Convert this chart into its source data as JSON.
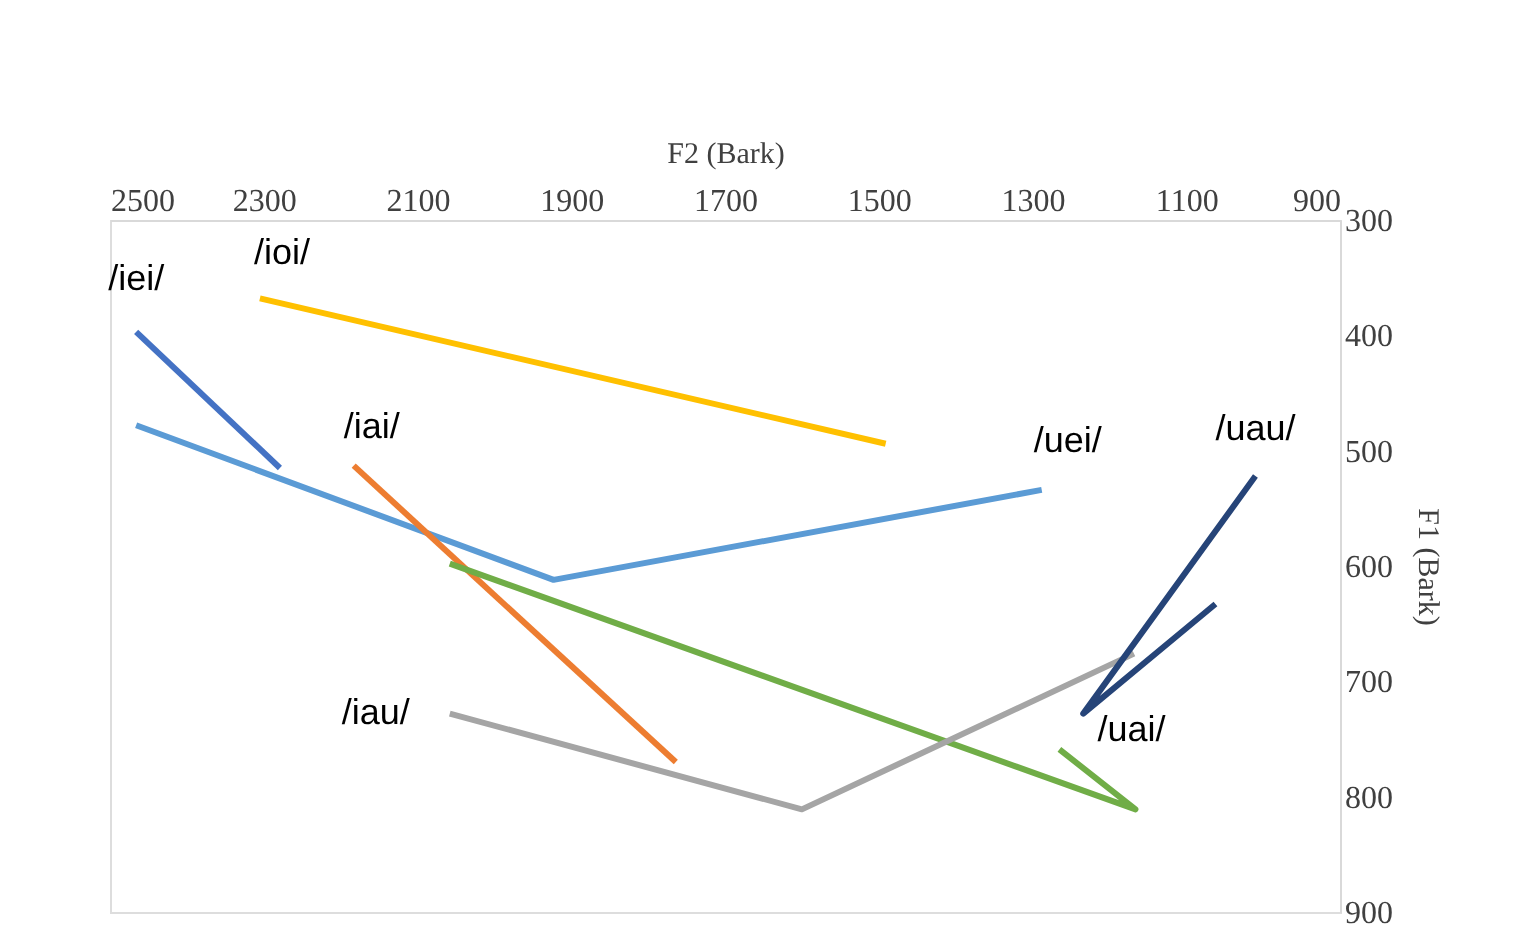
{
  "chart_data": {
    "type": "line",
    "xlabel": "F2 (Bark)",
    "ylabel": "F1 (Bark)",
    "xlim": [
      2500,
      900
    ],
    "xticks": [
      2500,
      2300,
      2100,
      1900,
      1700,
      1500,
      1300,
      1100,
      900
    ],
    "ylim": [
      900,
      300
    ],
    "yticks": [
      300,
      400,
      500,
      600,
      700,
      800,
      900
    ],
    "grid": false,
    "legend": false,
    "marker": "none",
    "line_style": "solid",
    "series": [
      {
        "name": "/iei/",
        "color": "#4472c4",
        "x": [
          2466,
          2279
        ],
        "values": [
          397,
          515
        ]
      },
      {
        "name": "/ioi/",
        "color": "#ffc000",
        "x": [
          2305,
          1491
        ],
        "values": [
          368,
          494
        ]
      },
      {
        "name": "/uei/",
        "color": "#5b9bd5",
        "x": [
          2466,
          1923,
          1288
        ],
        "values": [
          478,
          612,
          534
        ]
      },
      {
        "name": "/iai/",
        "color": "#ed7d31",
        "x": [
          2183,
          1764
        ],
        "values": [
          513,
          770
        ]
      },
      {
        "name": "/uai/",
        "color": "#70ad47",
        "x": [
          2058,
          1166,
          1265
        ],
        "values": [
          598,
          811,
          759
        ]
      },
      {
        "name": "/iau/",
        "color": "#a5a5a5",
        "x": [
          2058,
          1600,
          1168
        ],
        "values": [
          728,
          811,
          676
        ]
      },
      {
        "name": "/uau/",
        "color": "#264478",
        "x": [
          1010,
          1234,
          1062
        ],
        "values": [
          522,
          728,
          633
        ]
      }
    ]
  }
}
